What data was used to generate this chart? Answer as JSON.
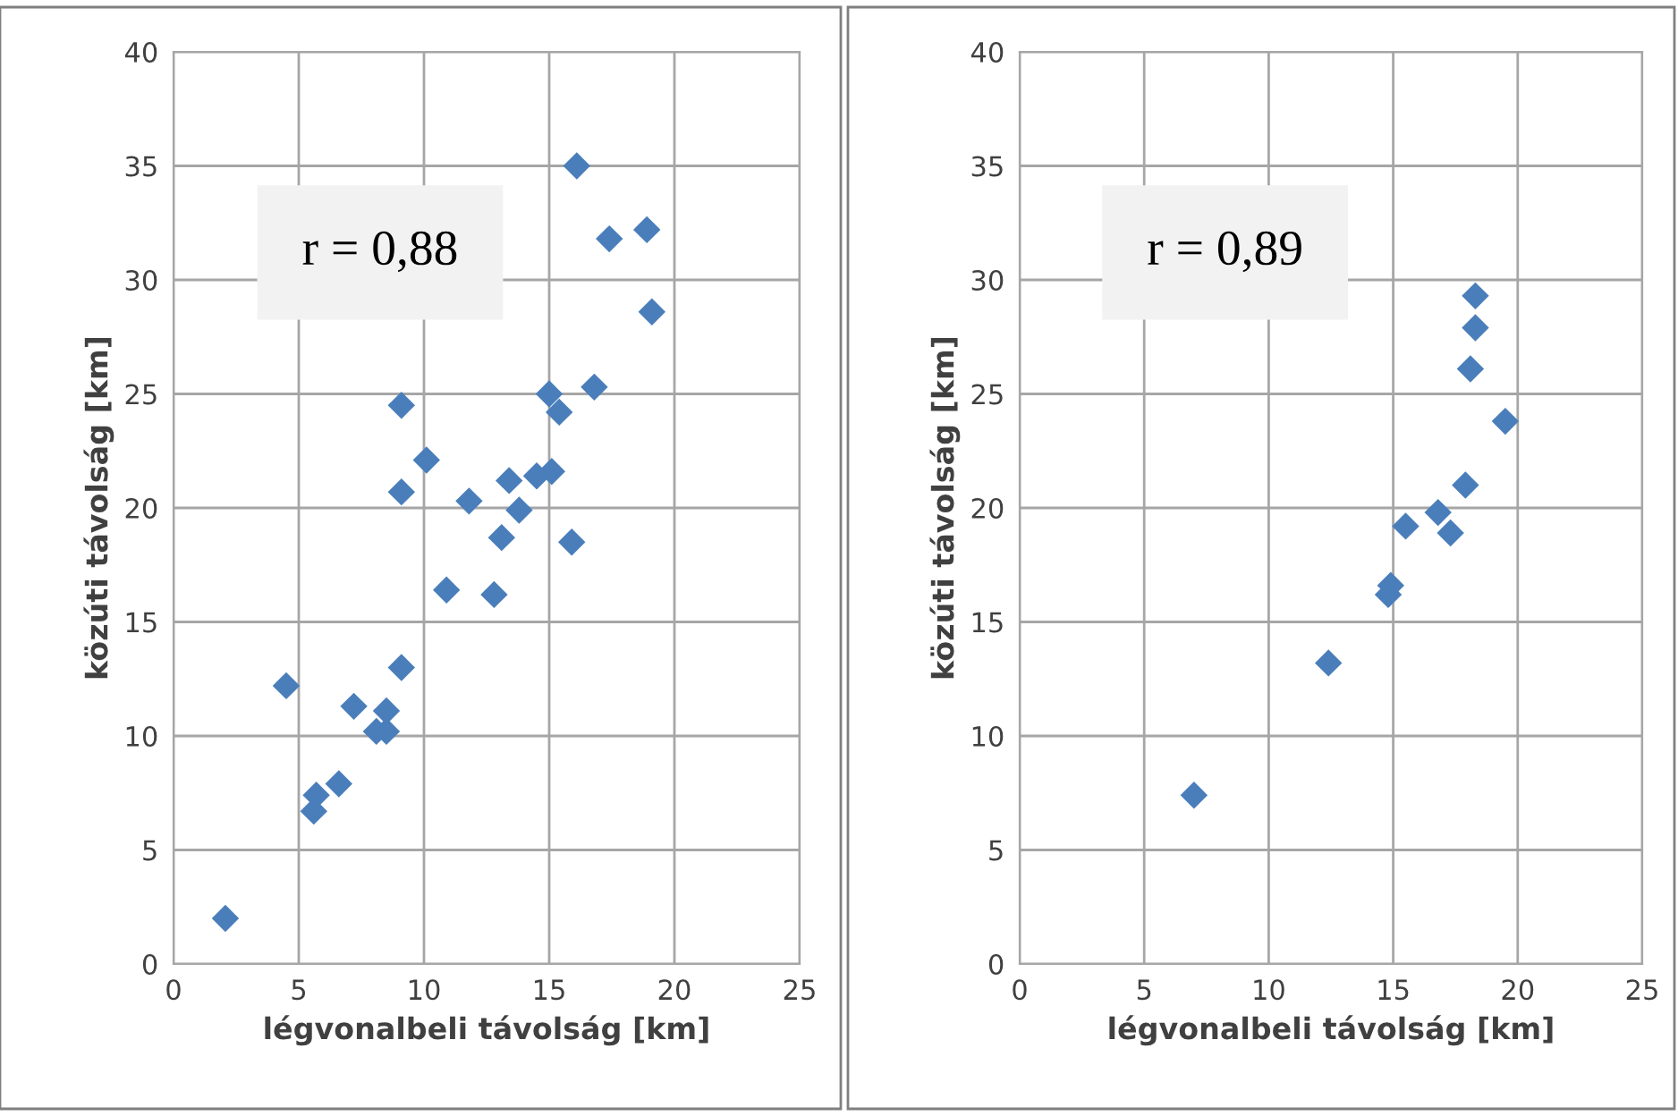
{
  "chart_data": [
    {
      "type": "scatter",
      "xlabel": "légvonalbeli távolság [km]",
      "ylabel": "közúti távolság [km]",
      "annotations": [
        "r = 0,88"
      ],
      "xlim": [
        0,
        25
      ],
      "ylim": [
        0,
        40
      ],
      "xticks": [
        0,
        5,
        10,
        15,
        20,
        25
      ],
      "yticks": [
        0,
        5,
        10,
        15,
        20,
        25,
        30,
        35,
        40
      ],
      "grid": true,
      "marker": "diamond",
      "series": [
        {
          "color": "#4a7ebb",
          "x": [
            2.07,
            4.5,
            5.6,
            5.7,
            6.6,
            7.2,
            8.1,
            8.5,
            8.5,
            9.1,
            9.1,
            9.1,
            10.1,
            10.9,
            11.8,
            12.8,
            13.1,
            13.4,
            13.8,
            14.5,
            15.0,
            15.1,
            15.4,
            15.9,
            16.1,
            16.8,
            17.4,
            18.9,
            19.1
          ],
          "values": [
            2.0,
            12.2,
            6.7,
            7.4,
            7.9,
            11.3,
            10.2,
            10.2,
            11.1,
            13.0,
            24.5,
            20.7,
            22.1,
            16.4,
            20.3,
            16.2,
            18.7,
            21.2,
            19.9,
            21.4,
            25.0,
            21.6,
            24.2,
            18.5,
            35.0,
            25.3,
            31.8,
            32.2,
            28.6
          ]
        }
      ]
    },
    {
      "type": "scatter",
      "xlabel": "légvonalbeli távolság [km]",
      "ylabel": "közúti távolság [km]",
      "annotations": [
        "r = 0,89"
      ],
      "xlim": [
        0,
        25
      ],
      "ylim": [
        0,
        40
      ],
      "xticks": [
        0,
        5,
        10,
        15,
        20,
        25
      ],
      "yticks": [
        0,
        5,
        10,
        15,
        20,
        25,
        30,
        35,
        40
      ],
      "grid": true,
      "marker": "diamond",
      "series": [
        {
          "color": "#4a7ebb",
          "x": [
            7.0,
            12.4,
            14.8,
            14.9,
            15.5,
            16.8,
            17.3,
            17.9,
            18.1,
            18.3,
            18.3,
            19.5
          ],
          "values": [
            7.4,
            13.2,
            16.2,
            16.6,
            19.2,
            19.8,
            18.9,
            21.0,
            26.1,
            27.9,
            29.3,
            23.8
          ]
        }
      ]
    }
  ]
}
